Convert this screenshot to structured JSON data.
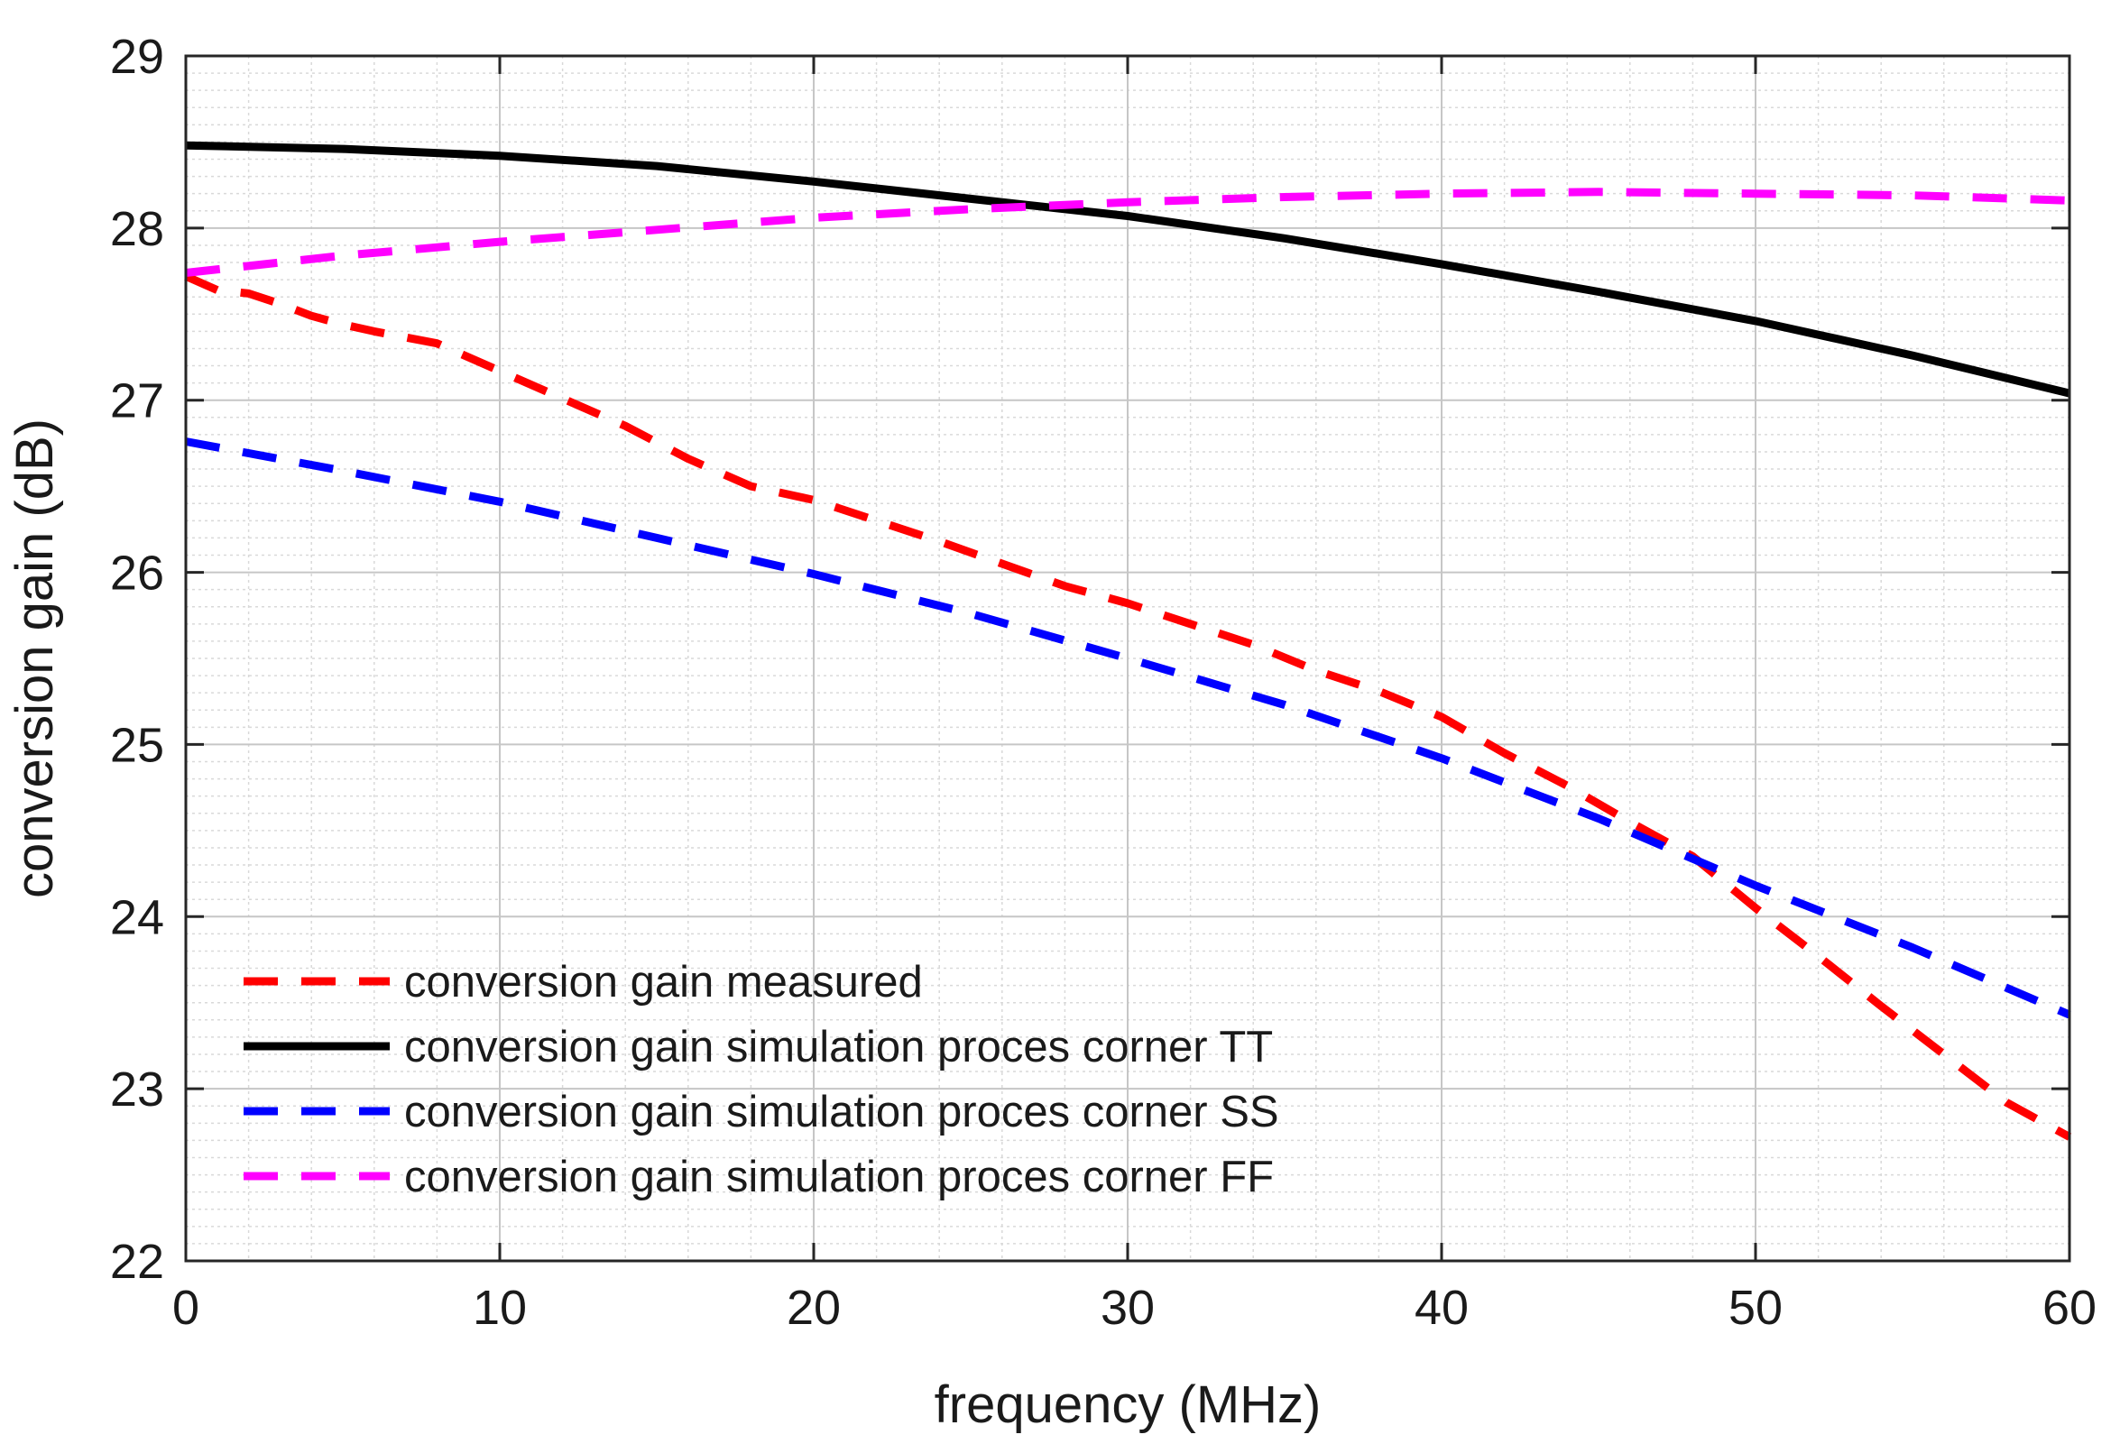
{
  "chart_data": {
    "type": "line",
    "title": "",
    "xlabel": "frequency (MHz)",
    "ylabel": "conversion gain (dB)",
    "xlim": [
      0,
      60
    ],
    "ylim": [
      22,
      29
    ],
    "xticks": [
      0,
      10,
      20,
      30,
      40,
      50,
      60
    ],
    "yticks": [
      22,
      23,
      24,
      25,
      26,
      27,
      28,
      29
    ],
    "xtick_labels": [
      "0",
      "10",
      "20",
      "30",
      "40",
      "50",
      "60"
    ],
    "ytick_labels": [
      "22",
      "23",
      "24",
      "25",
      "26",
      "27",
      "28",
      "29"
    ],
    "x_minor_step": 2,
    "y_minor_step": 0.1,
    "grid": true,
    "legend_position": "bottom-left",
    "series": [
      {
        "name": "conversion gain measured",
        "color": "#ff0000",
        "style": "dashed",
        "x": [
          0,
          1,
          2,
          3,
          4,
          5,
          6,
          8,
          10,
          12,
          14,
          16,
          18,
          20,
          22,
          24,
          26,
          28,
          30,
          32,
          34,
          36,
          38,
          40,
          42,
          44,
          46,
          48,
          50,
          52,
          54,
          56,
          58,
          60
        ],
        "y": [
          27.72,
          27.64,
          27.62,
          27.56,
          27.49,
          27.44,
          27.4,
          27.33,
          27.17,
          27.01,
          26.85,
          26.66,
          26.5,
          26.42,
          26.3,
          26.18,
          26.05,
          25.92,
          25.82,
          25.7,
          25.58,
          25.43,
          25.31,
          25.16,
          24.95,
          24.76,
          24.55,
          24.35,
          24.05,
          23.77,
          23.48,
          23.2,
          22.92,
          22.72
        ]
      },
      {
        "name": "conversion gain simulation proces corner TT",
        "color": "#000000",
        "style": "solid",
        "x": [
          0,
          5,
          10,
          15,
          20,
          25,
          30,
          35,
          40,
          45,
          50,
          55,
          60
        ],
        "y": [
          28.48,
          28.46,
          28.42,
          28.36,
          28.27,
          28.17,
          28.07,
          27.94,
          27.79,
          27.63,
          27.46,
          27.26,
          27.04
        ]
      },
      {
        "name": "conversion gain simulation proces corner SS",
        "color": "#0000ff",
        "style": "dashed",
        "x": [
          0,
          5,
          10,
          15,
          20,
          25,
          30,
          35,
          40,
          45,
          50,
          55,
          60
        ],
        "y": [
          26.76,
          26.59,
          26.41,
          26.2,
          25.99,
          25.76,
          25.5,
          25.23,
          24.92,
          24.57,
          24.18,
          23.82,
          23.43
        ]
      },
      {
        "name": "conversion gain simulation proces corner FF",
        "color": "#ff00ff",
        "style": "dashed",
        "x": [
          0,
          5,
          10,
          15,
          20,
          25,
          30,
          35,
          40,
          45,
          50,
          55,
          60
        ],
        "y": [
          27.74,
          27.84,
          27.92,
          27.99,
          28.06,
          28.11,
          28.15,
          28.18,
          28.2,
          28.21,
          28.2,
          28.19,
          28.16
        ]
      }
    ]
  }
}
